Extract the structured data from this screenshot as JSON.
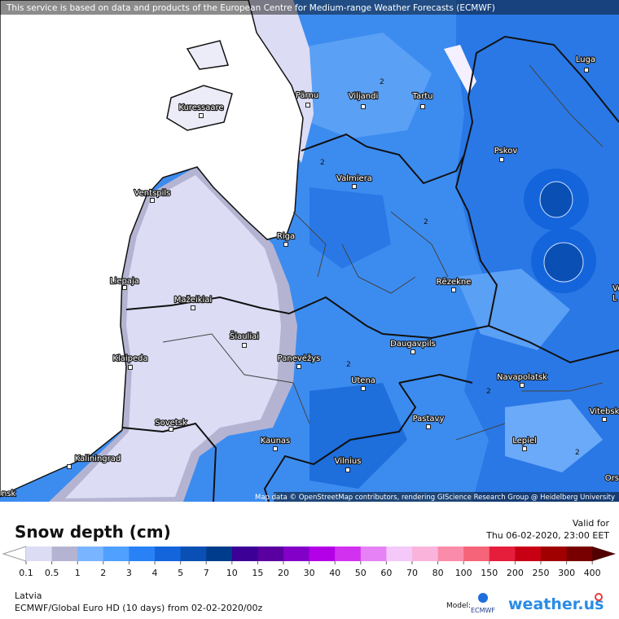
{
  "banner": "This service is based on data and products of the European Centre for Medium-range Weather Forecasts (ECMWF)",
  "map": {
    "cities": [
      "Luga",
      "Pärnu",
      "Viljandi",
      "Tartu",
      "Kuressaare",
      "Pskov",
      "Valmiera",
      "Ventspils",
      "Riga",
      "Liepaja",
      "Rēzekne",
      "Mažeikiai",
      "Šiauliai",
      "Klaipeda",
      "Panevėžys",
      "Daugavpils",
      "Utena",
      "Navapolatsk",
      "Sovetsk",
      "Pastavy",
      "Vitebsk",
      "Kaunas",
      "Lepiel",
      "Kaliningrad",
      "Vilnius"
    ],
    "partial_labels": [
      "Vel",
      "L",
      "Ors",
      "nsk"
    ],
    "contour_labels": [
      "2",
      "2",
      "2",
      "2",
      "2",
      "2"
    ],
    "attribution": "Map data © OpenStreetMap contributors, rendering GIScience Research Group @ Heidelberg University"
  },
  "footer": {
    "title": "Snow depth (cm)",
    "valid_label": "Valid for",
    "valid_time": "Thu 06-02-2020, 23:00 EET",
    "legend": {
      "labels": [
        0.1,
        0.5,
        1,
        2,
        3,
        4,
        5,
        7,
        10,
        15,
        20,
        30,
        40,
        50,
        60,
        70,
        80,
        100,
        150,
        200,
        250,
        300,
        400
      ],
      "colors": [
        "#dcdcf5",
        "#b4b4d2",
        "#78b4ff",
        "#50a0ff",
        "#2882f5",
        "#1464dc",
        "#0a50b4",
        "#003c8c",
        "#3c0096",
        "#5a00a0",
        "#8200c8",
        "#b400e6",
        "#d232f0",
        "#e682f5",
        "#f5c8fa",
        "#fab4dc",
        "#fa8caa",
        "#f56478",
        "#e61e3c",
        "#c80014",
        "#a00000",
        "#780000"
      ],
      "low_color": "#ffffff",
      "high_color": "#500000"
    },
    "region": "Latvia",
    "model_run": "ECMWF/Global Euro HD (10 days) from 02-02-2020/00z",
    "model_label": "Model:",
    "model_name": "ECMWF",
    "brand": "weather.us"
  }
}
